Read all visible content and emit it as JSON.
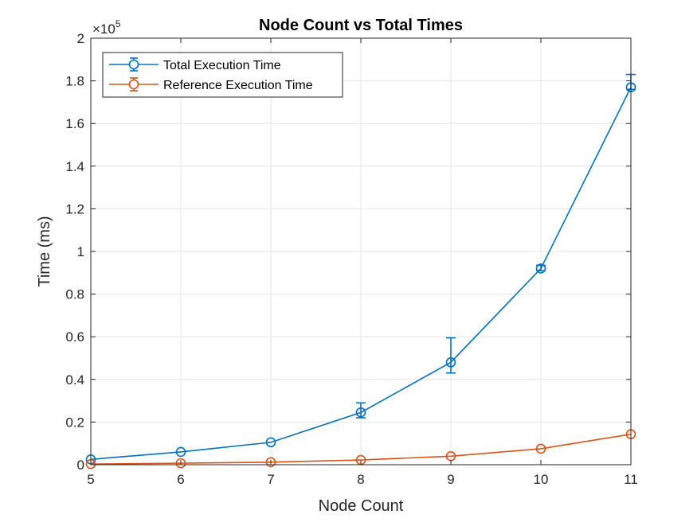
{
  "chart_data": {
    "type": "line",
    "title": "Node Count vs Total Times",
    "xlabel": "Node Count",
    "ylabel": "Time (ms)",
    "y_exponent_base": "×10",
    "y_exponent_power": "5",
    "xlim": [
      5,
      11
    ],
    "ylim": [
      0,
      2
    ],
    "x_ticks": [
      5,
      6,
      7,
      8,
      9,
      10,
      11
    ],
    "y_ticks": [
      0,
      0.2,
      0.4,
      0.6,
      0.8,
      1,
      1.2,
      1.4,
      1.6,
      1.8,
      2
    ],
    "y_tick_labels": [
      "0",
      "0.2",
      "0.4",
      "0.6",
      "0.8",
      "1",
      "1.2",
      "1.4",
      "1.6",
      "1.8",
      "2"
    ],
    "grid": true,
    "legend_position": "top-left",
    "x": [
      5,
      6,
      7,
      8,
      9,
      10,
      11
    ],
    "series": [
      {
        "name": "Total Execution Time",
        "color": "#0072BD",
        "values": [
          0.025,
          0.06,
          0.105,
          0.245,
          0.48,
          0.92,
          1.77
        ],
        "err_low": [
          0.025,
          0.06,
          0.105,
          0.22,
          0.43,
          0.91,
          1.76
        ],
        "err_high": [
          0.025,
          0.06,
          0.105,
          0.29,
          0.595,
          0.935,
          1.83
        ]
      },
      {
        "name": "Reference Execution Time",
        "color": "#D95319",
        "values": [
          0.003,
          0.007,
          0.012,
          0.022,
          0.04,
          0.075,
          0.143
        ],
        "err_low": [
          0.003,
          0.007,
          0.012,
          0.022,
          0.04,
          0.075,
          0.143
        ],
        "err_high": [
          0.003,
          0.007,
          0.012,
          0.022,
          0.04,
          0.075,
          0.143
        ]
      }
    ]
  }
}
